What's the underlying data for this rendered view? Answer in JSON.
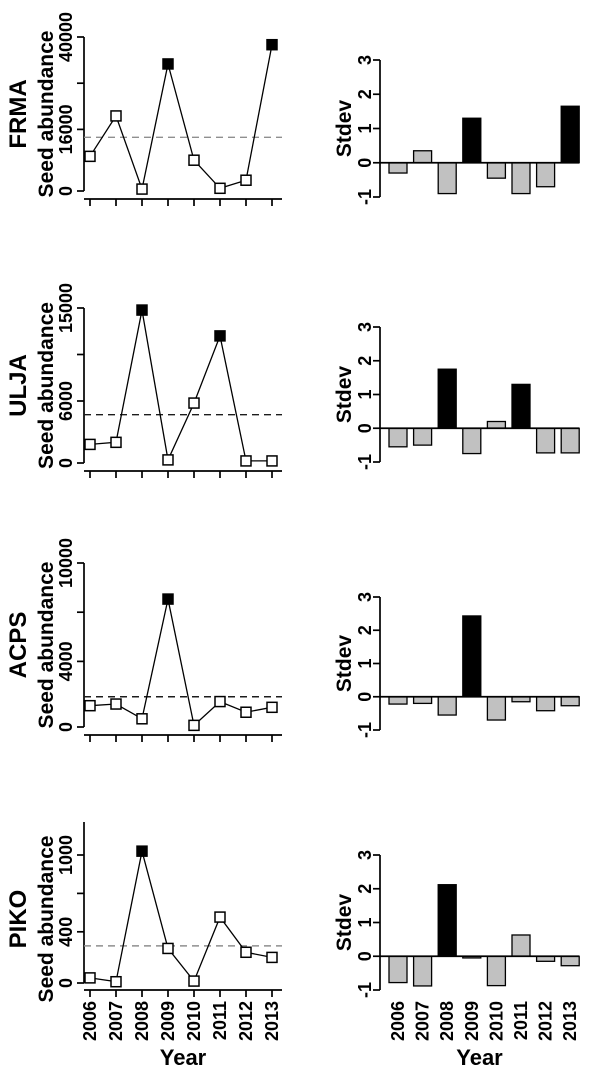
{
  "figure": {
    "xlabel": "Year",
    "years": [
      "2006",
      "2007",
      "2008",
      "2009",
      "2010",
      "2011",
      "2012",
      "2013"
    ],
    "left_column_title": "Seed abundance",
    "right_column_title": "Stdev",
    "colors": {
      "background": "#ffffff",
      "axis": "#000000",
      "data_line": "#000000",
      "marker_open_fill": "#ffffff",
      "marker_mast_fill": "#000000",
      "bar_fill_normal": "#c1c1c1",
      "bar_fill_mast": "#000000",
      "mean_dash_gray": "#8f8f8f",
      "mean_dash_dark": "#1c1c1c"
    }
  },
  "chart_data": [
    {
      "panel": "FRMA-seed",
      "type": "line",
      "row_label": "FRMA",
      "ylabel": "Seed abundance",
      "x": [
        "2006",
        "2007",
        "2008",
        "2009",
        "2010",
        "2011",
        "2012",
        "2013"
      ],
      "values": [
        9000,
        19500,
        500,
        33000,
        8000,
        700,
        2800,
        38000
      ],
      "mast_years": [
        "2009",
        "2013"
      ],
      "mean_line": 13940,
      "mean_line_color": "gray",
      "ylim": [
        0,
        40000
      ],
      "yticks": [
        {
          "value": 0,
          "label": "0"
        },
        {
          "value": 16000,
          "label": "16000"
        },
        {
          "value": 28000,
          "label": ""
        },
        {
          "value": 40000,
          "label": "40000"
        }
      ],
      "marker": "square",
      "grid": false
    },
    {
      "panel": "FRMA-stdev",
      "type": "bar",
      "row_label": "FRMA",
      "ylabel": "Stdev",
      "x": [
        "2006",
        "2007",
        "2008",
        "2009",
        "2010",
        "2011",
        "2012",
        "2013"
      ],
      "values": [
        -0.3,
        0.35,
        -0.9,
        1.3,
        -0.45,
        -0.9,
        -0.7,
        1.65
      ],
      "mast_years": [
        "2009",
        "2013"
      ],
      "ylim": [
        -1,
        3
      ],
      "yticks": [
        {
          "value": -1,
          "label": "-1"
        },
        {
          "value": 0,
          "label": "0"
        },
        {
          "value": 1,
          "label": "1"
        },
        {
          "value": 2,
          "label": "2"
        },
        {
          "value": 3,
          "label": "3"
        }
      ],
      "grid": false
    },
    {
      "panel": "ULJA-seed",
      "type": "line",
      "row_label": "ULJA",
      "ylabel": "Seed abundance",
      "x": [
        "2006",
        "2007",
        "2008",
        "2009",
        "2010",
        "2011",
        "2012",
        "2013"
      ],
      "values": [
        1800,
        2000,
        14800,
        300,
        5800,
        12300,
        200,
        200
      ],
      "mast_years": [
        "2008",
        "2011"
      ],
      "mean_line": 4675,
      "mean_line_color": "dark",
      "ylim": [
        0,
        15000
      ],
      "yticks": [
        {
          "value": 0,
          "label": "0"
        },
        {
          "value": 6000,
          "label": "6000"
        },
        {
          "value": 10500,
          "label": ""
        },
        {
          "value": 15000,
          "label": "15000"
        }
      ],
      "marker": "square",
      "grid": false
    },
    {
      "panel": "ULJA-stdev",
      "type": "bar",
      "row_label": "ULJA",
      "ylabel": "Stdev",
      "x": [
        "2006",
        "2007",
        "2008",
        "2009",
        "2010",
        "2011",
        "2012",
        "2013"
      ],
      "values": [
        -0.55,
        -0.5,
        1.75,
        -0.75,
        0.2,
        1.3,
        -0.73,
        -0.73
      ],
      "mast_years": [
        "2008",
        "2011"
      ],
      "ylim": [
        -1,
        3
      ],
      "yticks": [
        {
          "value": -1,
          "label": "-1"
        },
        {
          "value": 0,
          "label": "0"
        },
        {
          "value": 1,
          "label": "1"
        },
        {
          "value": 2,
          "label": "2"
        },
        {
          "value": 3,
          "label": "3"
        }
      ],
      "grid": false
    },
    {
      "panel": "ACPS-seed",
      "type": "line",
      "row_label": "ACPS",
      "ylabel": "Seed abundance",
      "x": [
        "2006",
        "2007",
        "2008",
        "2009",
        "2010",
        "2011",
        "2012",
        "2013"
      ],
      "values": [
        1300,
        1400,
        500,
        7800,
        100,
        1550,
        900,
        1200
      ],
      "mast_years": [
        "2009"
      ],
      "mean_line": 1845,
      "mean_line_color": "dark",
      "ylim": [
        0,
        10000
      ],
      "yticks": [
        {
          "value": 0,
          "label": "0"
        },
        {
          "value": 4000,
          "label": "4000"
        },
        {
          "value": 7000,
          "label": ""
        },
        {
          "value": 10000,
          "label": "10000"
        }
      ],
      "marker": "square",
      "grid": false
    },
    {
      "panel": "ACPS-stdev",
      "type": "bar",
      "row_label": "ACPS",
      "ylabel": "Stdev",
      "x": [
        "2006",
        "2007",
        "2008",
        "2009",
        "2010",
        "2011",
        "2012",
        "2013"
      ],
      "values": [
        -0.22,
        -0.2,
        -0.55,
        2.43,
        -0.7,
        -0.15,
        -0.42,
        -0.27
      ],
      "mast_years": [
        "2009"
      ],
      "ylim": [
        -1,
        3
      ],
      "yticks": [
        {
          "value": -1,
          "label": "-1"
        },
        {
          "value": 0,
          "label": "0"
        },
        {
          "value": 1,
          "label": "1"
        },
        {
          "value": 2,
          "label": "2"
        },
        {
          "value": 3,
          "label": "3"
        }
      ],
      "grid": false
    },
    {
      "panel": "PIKO-seed",
      "type": "line",
      "row_label": "PIKO",
      "ylabel": "Seed abundance",
      "x": [
        "2006",
        "2007",
        "2008",
        "2009",
        "2010",
        "2011",
        "2012",
        "2013"
      ],
      "values": [
        40,
        10,
        1030,
        270,
        15,
        515,
        240,
        200
      ],
      "mast_years": [
        "2008"
      ],
      "mean_line": 290,
      "mean_line_color": "gray",
      "ylim": [
        0,
        1000
      ],
      "yticks": [
        {
          "value": 0,
          "label": "0"
        },
        {
          "value": 400,
          "label": "400"
        },
        {
          "value": 700,
          "label": ""
        },
        {
          "value": 1000,
          "label": "1000"
        }
      ],
      "marker": "square",
      "grid": false
    },
    {
      "panel": "PIKO-stdev",
      "type": "bar",
      "row_label": "PIKO",
      "ylabel": "Stdev",
      "x": [
        "2006",
        "2007",
        "2008",
        "2009",
        "2010",
        "2011",
        "2012",
        "2013"
      ],
      "values": [
        -0.78,
        -0.88,
        2.12,
        -0.05,
        -0.87,
        0.63,
        -0.15,
        -0.28
      ],
      "mast_years": [
        "2008"
      ],
      "ylim": [
        -1,
        3
      ],
      "yticks": [
        {
          "value": -1,
          "label": "-1"
        },
        {
          "value": 0,
          "label": "0"
        },
        {
          "value": 1,
          "label": "1"
        },
        {
          "value": 2,
          "label": "2"
        },
        {
          "value": 3,
          "label": "3"
        }
      ],
      "grid": false
    }
  ]
}
